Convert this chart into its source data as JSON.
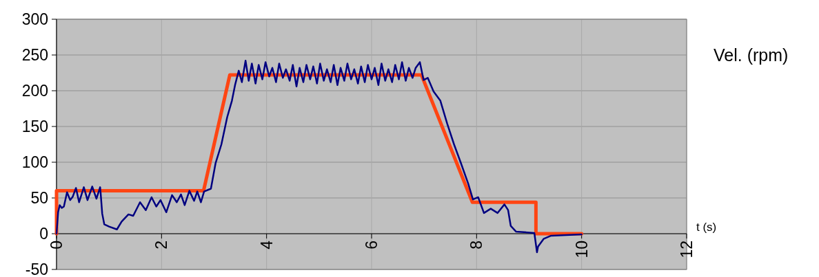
{
  "chart_data": {
    "type": "line",
    "xlabel": "t (s)",
    "ylabel": "Vel. (rpm)",
    "xlim": [
      0,
      12
    ],
    "xticks": [
      0,
      2,
      4,
      6,
      8,
      10,
      12
    ],
    "ylim": [
      -50,
      300
    ],
    "yticks": [
      -50,
      0,
      50,
      100,
      150,
      200,
      250,
      300
    ],
    "grid": true,
    "marker": "none",
    "line_style": "solid",
    "series": [
      {
        "color": "#ff4513",
        "x": [
          0,
          0,
          2.8,
          3.3,
          6.95,
          7.92,
          9.13,
          9.13,
          10
        ],
        "values": [
          0,
          60,
          60,
          222,
          222,
          44,
          44,
          0,
          0
        ]
      },
      {
        "color": "#000080",
        "x": [
          0,
          0.03,
          0.06,
          0.1,
          0.14,
          0.2,
          0.26,
          0.31,
          0.37,
          0.43,
          0.52,
          0.59,
          0.68,
          0.76,
          0.83,
          0.84,
          0.87,
          0.91,
          1.0,
          1.15,
          1.24,
          1.37,
          1.46,
          1.59,
          1.7,
          1.81,
          1.9,
          1.98,
          2.09,
          2.2,
          2.29,
          2.37,
          2.44,
          2.53,
          2.62,
          2.68,
          2.75,
          2.81,
          2.94,
          3.03,
          3.14,
          3.25,
          3.34,
          3.4,
          3.47,
          3.53,
          3.6,
          3.66,
          3.72,
          3.79,
          3.85,
          3.92,
          3.98,
          4.05,
          4.11,
          4.18,
          4.24,
          4.31,
          4.37,
          4.44,
          4.5,
          4.57,
          4.63,
          4.7,
          4.76,
          4.83,
          4.89,
          4.96,
          5.02,
          5.09,
          5.15,
          5.22,
          5.28,
          5.35,
          5.41,
          5.48,
          5.54,
          5.61,
          5.67,
          5.74,
          5.8,
          5.87,
          5.93,
          6.0,
          6.06,
          6.13,
          6.19,
          6.26,
          6.32,
          6.39,
          6.45,
          6.52,
          6.58,
          6.65,
          6.71,
          6.78,
          6.84,
          6.92,
          6.99,
          7.07,
          7.18,
          7.31,
          7.44,
          7.57,
          7.7,
          7.84,
          7.93,
          8.03,
          8.14,
          8.27,
          8.4,
          8.53,
          8.6,
          8.65,
          8.75,
          9.1,
          9.15,
          9.17,
          9.28,
          9.41,
          10
        ],
        "values": [
          0,
          30,
          40,
          36,
          38,
          58,
          47,
          52,
          64,
          44,
          65,
          47,
          66,
          49,
          65,
          57,
          28,
          13,
          10,
          6,
          17,
          27,
          25,
          44,
          33,
          51,
          38,
          47,
          30,
          54,
          44,
          55,
          40,
          60,
          46,
          59,
          44,
          59,
          63,
          99,
          125,
          163,
          186,
          208,
          228,
          212,
          242,
          214,
          238,
          210,
          236,
          216,
          240,
          220,
          232,
          212,
          238,
          218,
          230,
          214,
          236,
          206,
          232,
          212,
          236,
          216,
          234,
          210,
          238,
          214,
          230,
          212,
          236,
          208,
          232,
          214,
          238,
          216,
          230,
          210,
          234,
          212,
          236,
          216,
          232,
          208,
          238,
          214,
          230,
          212,
          236,
          216,
          240,
          214,
          232,
          218,
          232,
          240,
          215,
          218,
          199,
          186,
          154,
          125,
          99,
          70,
          48,
          51,
          29,
          35,
          29,
          41,
          33,
          11,
          3,
          1,
          -26,
          -18,
          -7,
          -3,
          -1
        ]
      }
    ]
  }
}
